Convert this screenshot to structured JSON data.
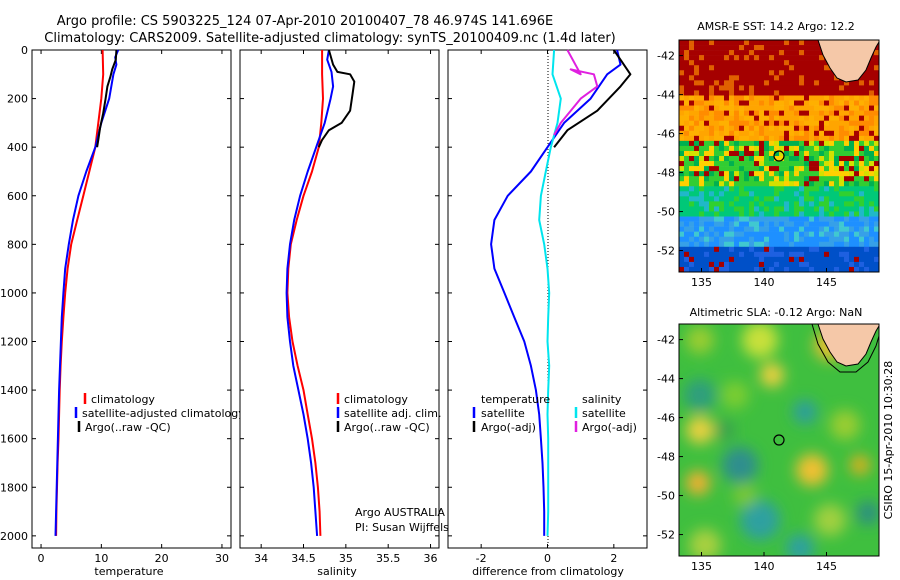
{
  "title_line1": "Argo profile: CS 5903225_124 07-Apr-2010 20100407_78 46.974S 141.696E",
  "title_line2": "Climatology: CARS2009. Satellite-adjusted climatology: synTS_20100409.nc (1.4d later)",
  "colors": {
    "climatology": "#ff0000",
    "satellite": "#0000ff",
    "argo": "#000000",
    "sal_satellite": "#00e5ee",
    "sal_argo": "#e020e0"
  },
  "chart_data": [
    {
      "id": "temperature",
      "type": "line",
      "xlabel": "temperature",
      "ylabel": "",
      "xlim": [
        -1.5,
        31.5
      ],
      "ylim": [
        2050,
        0
      ],
      "xticks": [
        0,
        10,
        20,
        30
      ],
      "yticks": [
        0,
        200,
        400,
        600,
        800,
        1000,
        1200,
        1400,
        1600,
        1800,
        2000
      ],
      "legend": [
        "climatology",
        "satellite-adjusted climatology",
        "Argo(..raw -QC)"
      ],
      "series": [
        {
          "name": "climatology",
          "color": "#ff0000",
          "points": [
            [
              10.2,
              0
            ],
            [
              10.3,
              100
            ],
            [
              10.0,
              200
            ],
            [
              9.5,
              300
            ],
            [
              9.0,
              400
            ],
            [
              8.0,
              500
            ],
            [
              7.0,
              600
            ],
            [
              6.0,
              700
            ],
            [
              5.0,
              800
            ],
            [
              4.4,
              900
            ],
            [
              4.0,
              1000
            ],
            [
              3.7,
              1100
            ],
            [
              3.45,
              1200
            ],
            [
              3.25,
              1300
            ],
            [
              3.1,
              1400
            ],
            [
              3.0,
              1500
            ],
            [
              2.9,
              1600
            ],
            [
              2.75,
              1700
            ],
            [
              2.65,
              1800
            ],
            [
              2.55,
              1900
            ],
            [
              2.5,
              2000
            ]
          ]
        },
        {
          "name": "satellite-adjusted climatology",
          "color": "#0000ff",
          "points": [
            [
              12.8,
              0
            ],
            [
              12.3,
              30
            ],
            [
              12.5,
              60
            ],
            [
              12.0,
              100
            ],
            [
              11.3,
              200
            ],
            [
              10.0,
              300
            ],
            [
              9.0,
              400
            ],
            [
              7.5,
              500
            ],
            [
              6.2,
              600
            ],
            [
              5.3,
              700
            ],
            [
              4.6,
              800
            ],
            [
              4.0,
              900
            ],
            [
              3.7,
              1000
            ],
            [
              3.45,
              1100
            ],
            [
              3.3,
              1200
            ],
            [
              3.15,
              1300
            ],
            [
              3.0,
              1400
            ],
            [
              2.9,
              1500
            ],
            [
              2.8,
              1600
            ],
            [
              2.7,
              1700
            ],
            [
              2.6,
              1800
            ],
            [
              2.5,
              1900
            ],
            [
              2.4,
              2000
            ]
          ]
        },
        {
          "name": "Argo(..raw -QC)",
          "color": "#000000",
          "points": [
            [
              12.5,
              0
            ],
            [
              12.4,
              40
            ],
            [
              11.8,
              80
            ],
            [
              11.5,
              110
            ],
            [
              11.0,
              150
            ],
            [
              10.7,
              200
            ],
            [
              10.3,
              260
            ],
            [
              9.8,
              320
            ],
            [
              9.5,
              370
            ],
            [
              9.3,
              400
            ]
          ]
        }
      ]
    },
    {
      "id": "salinity",
      "type": "line",
      "xlabel": "salinity",
      "ylabel": "",
      "xlim": [
        33.75,
        36.1
      ],
      "ylim": [
        2050,
        0
      ],
      "xticks": [
        34,
        34.5,
        35,
        35.5,
        36
      ],
      "legend": [
        "climatology",
        "satellite adj. clim.",
        "Argo(..raw -QC)"
      ],
      "annotation": [
        "Argo AUSTRALIA",
        "PI: Susan Wijffels"
      ],
      "series": [
        {
          "name": "climatology",
          "color": "#ff0000",
          "points": [
            [
              34.72,
              0
            ],
            [
              34.72,
              100
            ],
            [
              34.73,
              200
            ],
            [
              34.71,
              300
            ],
            [
              34.68,
              400
            ],
            [
              34.6,
              500
            ],
            [
              34.5,
              600
            ],
            [
              34.42,
              700
            ],
            [
              34.35,
              800
            ],
            [
              34.32,
              900
            ],
            [
              34.31,
              1000
            ],
            [
              34.33,
              1100
            ],
            [
              34.37,
              1200
            ],
            [
              34.43,
              1300
            ],
            [
              34.5,
              1400
            ],
            [
              34.55,
              1500
            ],
            [
              34.6,
              1600
            ],
            [
              34.64,
              1700
            ],
            [
              34.67,
              1800
            ],
            [
              34.69,
              1900
            ],
            [
              34.7,
              2000
            ]
          ]
        },
        {
          "name": "satellite adj. clim.",
          "color": "#0000ff",
          "points": [
            [
              34.8,
              0
            ],
            [
              34.78,
              40
            ],
            [
              34.83,
              90
            ],
            [
              34.85,
              150
            ],
            [
              34.82,
              200
            ],
            [
              34.75,
              300
            ],
            [
              34.65,
              400
            ],
            [
              34.55,
              500
            ],
            [
              34.46,
              600
            ],
            [
              34.39,
              700
            ],
            [
              34.34,
              800
            ],
            [
              34.31,
              900
            ],
            [
              34.3,
              1000
            ],
            [
              34.31,
              1100
            ],
            [
              34.34,
              1200
            ],
            [
              34.38,
              1300
            ],
            [
              34.44,
              1400
            ],
            [
              34.5,
              1500
            ],
            [
              34.55,
              1600
            ],
            [
              34.59,
              1700
            ],
            [
              34.62,
              1800
            ],
            [
              34.64,
              1900
            ],
            [
              34.66,
              2000
            ]
          ]
        },
        {
          "name": "Argo(..raw -QC)",
          "color": "#000000",
          "points": [
            [
              34.8,
              0
            ],
            [
              34.85,
              60
            ],
            [
              34.9,
              90
            ],
            [
              35.05,
              100
            ],
            [
              35.1,
              130
            ],
            [
              35.08,
              180
            ],
            [
              35.05,
              250
            ],
            [
              34.95,
              300
            ],
            [
              34.8,
              330
            ],
            [
              34.72,
              370
            ],
            [
              34.68,
              400
            ]
          ]
        }
      ]
    },
    {
      "id": "difference",
      "type": "line",
      "xlabel": "difference from climatology",
      "ylabel": "",
      "xlim": [
        -3,
        3
      ],
      "ylim": [
        2050,
        0
      ],
      "xticks": [
        -2,
        0,
        2
      ],
      "legend_temperature_title": "temperature",
      "legend_salinity_title": "salinity",
      "legend_temperature": [
        "satellite",
        "Argo(-adj)"
      ],
      "legend_salinity": [
        "satellite",
        "Argo(-adj)"
      ],
      "series": [
        {
          "name": "temperature satellite",
          "color": "#0000ff",
          "points": [
            [
              2.1,
              0
            ],
            [
              2.2,
              60
            ],
            [
              1.8,
              100
            ],
            [
              1.3,
              200
            ],
            [
              0.5,
              300
            ],
            [
              0.0,
              400
            ],
            [
              -0.5,
              500
            ],
            [
              -1.2,
              600
            ],
            [
              -1.6,
              700
            ],
            [
              -1.7,
              800
            ],
            [
              -1.6,
              900
            ],
            [
              -1.3,
              1000
            ],
            [
              -1.0,
              1100
            ],
            [
              -0.7,
              1200
            ],
            [
              -0.5,
              1300
            ],
            [
              -0.35,
              1400
            ],
            [
              -0.25,
              1500
            ],
            [
              -0.2,
              1600
            ],
            [
              -0.15,
              1700
            ],
            [
              -0.12,
              1800
            ],
            [
              -0.1,
              1900
            ],
            [
              -0.1,
              2000
            ]
          ]
        },
        {
          "name": "temperature Argo(-adj)",
          "color": "#000000",
          "points": [
            [
              2.0,
              0
            ],
            [
              2.2,
              40
            ],
            [
              2.5,
              100
            ],
            [
              2.2,
              150
            ],
            [
              1.5,
              250
            ],
            [
              0.6,
              330
            ],
            [
              0.2,
              400
            ]
          ]
        },
        {
          "name": "salinity satellite",
          "color": "#00e5ee",
          "points": [
            [
              0.2,
              0
            ],
            [
              0.15,
              100
            ],
            [
              0.4,
              200
            ],
            [
              0.3,
              300
            ],
            [
              0.1,
              400
            ],
            [
              -0.05,
              500
            ],
            [
              -0.2,
              600
            ],
            [
              -0.25,
              700
            ],
            [
              -0.1,
              800
            ],
            [
              0.0,
              900
            ],
            [
              0.05,
              1000
            ],
            [
              0.02,
              1100
            ],
            [
              0.0,
              1200
            ],
            [
              0.05,
              1300
            ],
            [
              0.02,
              1400
            ],
            [
              0.0,
              1500
            ],
            [
              0.02,
              1600
            ],
            [
              0.02,
              1700
            ],
            [
              0.02,
              1800
            ],
            [
              0.02,
              1900
            ],
            [
              0.0,
              2000
            ]
          ]
        },
        {
          "name": "salinity Argo(-adj)",
          "color": "#e020e0",
          "points": [
            [
              0.6,
              0
            ],
            [
              1.0,
              100
            ],
            [
              0.7,
              80
            ],
            [
              1.4,
              100
            ],
            [
              1.5,
              150
            ],
            [
              1.0,
              200
            ],
            [
              0.4,
              300
            ],
            [
              0.2,
              350
            ]
          ]
        }
      ]
    }
  ],
  "maps": [
    {
      "id": "sst-map",
      "title": "AMSR-E SST: 14.2 Argo: 12.2",
      "xticks": [
        135,
        140,
        145
      ],
      "yticks": [
        -42,
        -44,
        -46,
        -48,
        -50,
        -52
      ]
    },
    {
      "id": "sla-map",
      "title": "Altimetric SLA: -0.12 Argo: NaN",
      "xticks": [
        135,
        140,
        145
      ],
      "yticks": [
        -42,
        -44,
        -46,
        -48,
        -50,
        -52
      ]
    }
  ],
  "footer_stamp": "CSIRO 15-Apr-2010 10:30:28"
}
